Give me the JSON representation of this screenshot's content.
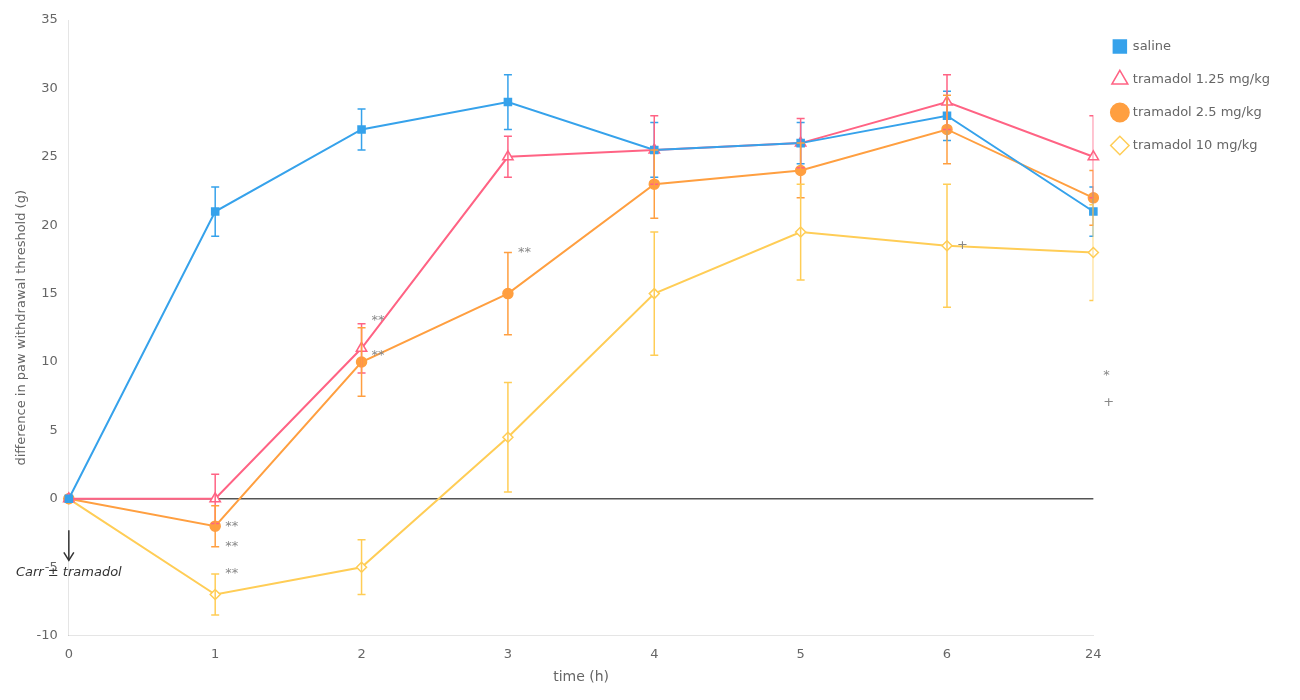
{
  "chart_data": {
    "type": "line",
    "categories": [
      "0",
      "1",
      "2",
      "3",
      "4",
      "5",
      "6",
      "24"
    ],
    "series": [
      {
        "name": "saline",
        "values": [
          0,
          21,
          27,
          29,
          25.5,
          26,
          28,
          21
        ],
        "error": [
          0.0,
          1.8,
          1.5,
          2.0,
          2.0,
          1.5,
          1.8,
          1.8
        ],
        "marker": "filled square"
      },
      {
        "name": "tramadol 1.25 mg/kg",
        "values": [
          0,
          0,
          11,
          25,
          25.5,
          26,
          29,
          25
        ],
        "error": [
          0.0,
          1.8,
          1.8,
          1.5,
          2.5,
          1.8,
          2.0,
          3.0
        ],
        "marker": "open triangle"
      },
      {
        "name": "tramadol 2.5 mg/kg",
        "values": [
          0,
          -2,
          10,
          15,
          23,
          24,
          27,
          22
        ],
        "error": [
          0.0,
          1.5,
          2.5,
          3.0,
          2.5,
          2.0,
          2.5,
          2.0
        ],
        "marker": "filled circle"
      },
      {
        "name": "tramadol 10 mg/kg",
        "values": [
          0,
          -7,
          -5,
          4.5,
          15,
          19.5,
          18.5,
          18
        ],
        "error": [
          0.0,
          1.5,
          2.0,
          4.0,
          4.5,
          3.5,
          4.5,
          3.5
        ],
        "marker": "open diamond"
      }
    ],
    "xlabel": "time (h)",
    "ylabel": "difference in paw withdrawal threshold (g)",
    "ylim": [
      -10,
      35
    ],
    "yticks": [
      -10,
      -5,
      0,
      5,
      10,
      15,
      20,
      25,
      30,
      35
    ],
    "grid": false,
    "legend": "right",
    "annotations": [
      {
        "type": "hline",
        "y": 0
      },
      {
        "type": "arrow",
        "text": "Carr ± tramadol",
        "x": "0",
        "y": -4.5
      },
      {
        "type": "text",
        "text": "**",
        "x": "1",
        "y": -2.0
      },
      {
        "type": "text",
        "text": "**",
        "x": "1",
        "y": -3.5
      },
      {
        "type": "text",
        "text": "**",
        "x": "1",
        "y": -5.5
      },
      {
        "type": "text",
        "text": "**",
        "x": "2",
        "y": 13.0
      },
      {
        "type": "text",
        "text": "**",
        "x": "2",
        "y": 10.5
      },
      {
        "type": "text",
        "text": "**",
        "x": "3",
        "y": 18.0
      },
      {
        "type": "text",
        "text": "+",
        "x": "6",
        "y": 18.5
      },
      {
        "type": "text",
        "text": "*",
        "x": "24",
        "y": 9.0
      },
      {
        "type": "text",
        "text": "+",
        "x": "24",
        "y": 7.0
      }
    ]
  }
}
